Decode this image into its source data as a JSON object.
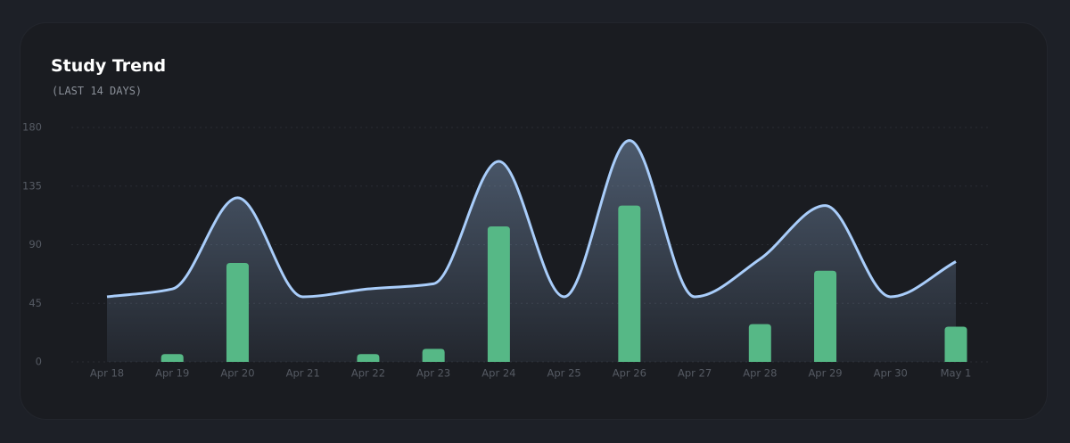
{
  "chart_data": {
    "type": "bar-line",
    "title": "Study Trend",
    "subtitle": "(LAST 14 DAYS)",
    "categories": [
      "Apr 18",
      "Apr 19",
      "Apr 20",
      "Apr 21",
      "Apr 22",
      "Apr 23",
      "Apr 24",
      "Apr 25",
      "Apr 26",
      "Apr 27",
      "Apr 28",
      "Apr 29",
      "Apr 30",
      "May 1"
    ],
    "series": [
      {
        "type": "line",
        "color": "#a9cdfa",
        "values": [
          50,
          56,
          126,
          50,
          56,
          60,
          154,
          50,
          170,
          50,
          79,
          120,
          50,
          77
        ]
      },
      {
        "type": "bar",
        "color": "#56b886",
        "values": [
          0,
          6,
          76,
          0,
          6,
          10,
          104,
          0,
          120,
          0,
          29,
          70,
          0,
          27
        ]
      }
    ],
    "ylim": [
      0,
      180
    ],
    "yticks": [
      0,
      45,
      90,
      135,
      180
    ],
    "grid": true
  }
}
